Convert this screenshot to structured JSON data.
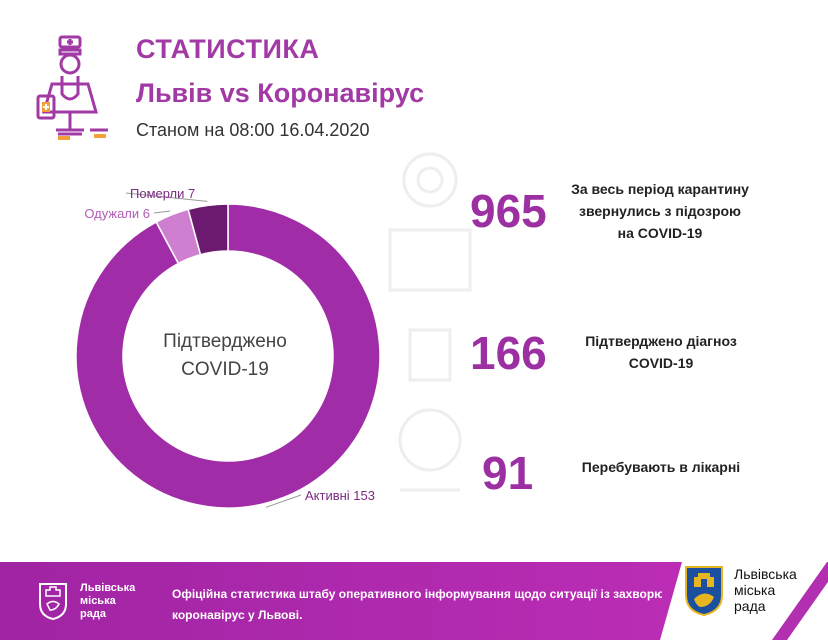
{
  "header": {
    "title": "СТАТИСТИКА",
    "subtitle": "Львів vs Коронавірус",
    "as_of": "Станом на 08:00 16.04.2020",
    "icon": "doctor-icon"
  },
  "chart_data": {
    "type": "pie",
    "center_label_line1": "Підтверджено",
    "center_label_line2": "COVID-19",
    "slices": [
      {
        "label": "Активні 153",
        "value": 153,
        "color": "#a12ca7"
      },
      {
        "label": "Одужали 6",
        "value": 6,
        "color": "#cf7fd0"
      },
      {
        "label": "Померли 7",
        "value": 7,
        "color": "#6b1a6f"
      }
    ]
  },
  "stats": [
    {
      "number": "965",
      "line1": "За весь період карантину",
      "line2": "звернулись з підозрою",
      "line3": "на COVID-19"
    },
    {
      "number": "166",
      "line1": "Підтверджено діагноз",
      "line2": "COVID-19"
    },
    {
      "number": "91",
      "line1": "Перебувають в лікарні"
    }
  ],
  "footer": {
    "org_line1": "Львівська",
    "org_line2": "міська",
    "org_line3": "рада",
    "text_line1": "Офіційна статистика штабу оперативного інформування щодо ситуації із захворюванням",
    "text_line2": "коронавірус у Львові.",
    "crest_icon": "lviv-crest-icon",
    "colors": {
      "primary": "#a024a4",
      "accent": "#c02fb8"
    }
  }
}
